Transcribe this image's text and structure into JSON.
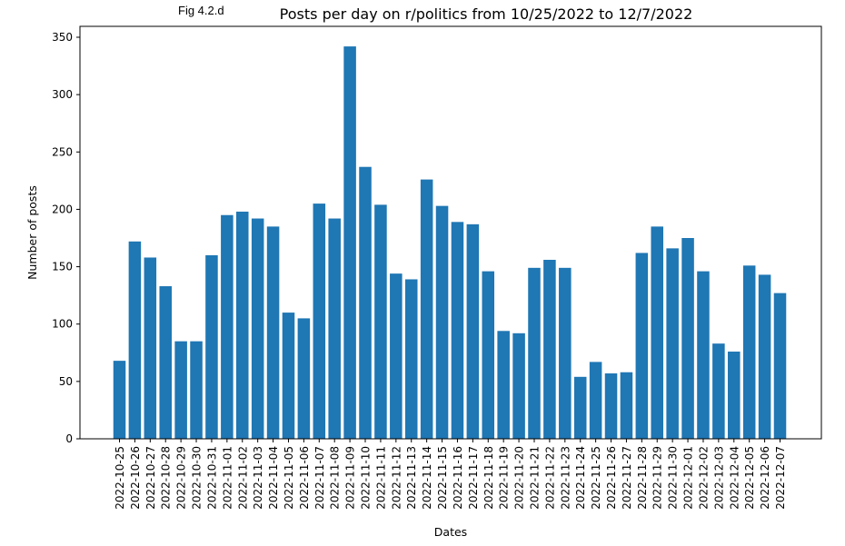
{
  "figure_label": "Fig 4.2.d",
  "chart_data": {
    "type": "bar",
    "title": "Posts per day on r/politics from 10/25/2022 to 12/7/2022",
    "xlabel": "Dates",
    "ylabel": "Number of posts",
    "ylim": [
      0,
      350
    ],
    "yticks": [
      0,
      50,
      100,
      150,
      200,
      250,
      300,
      350
    ],
    "bar_color": "#1f77b4",
    "grid": false,
    "categories": [
      "2022-10-25",
      "2022-10-26",
      "2022-10-27",
      "2022-10-28",
      "2022-10-29",
      "2022-10-30",
      "2022-10-31",
      "2022-11-01",
      "2022-11-02",
      "2022-11-03",
      "2022-11-04",
      "2022-11-05",
      "2022-11-06",
      "2022-11-07",
      "2022-11-08",
      "2022-11-09",
      "2022-11-10",
      "2022-11-11",
      "2022-11-12",
      "2022-11-13",
      "2022-11-14",
      "2022-11-15",
      "2022-11-16",
      "2022-11-17",
      "2022-11-18",
      "2022-11-19",
      "2022-11-20",
      "2022-11-21",
      "2022-11-22",
      "2022-11-23",
      "2022-11-24",
      "2022-11-25",
      "2022-11-26",
      "2022-11-27",
      "2022-11-28",
      "2022-11-29",
      "2022-11-30",
      "2022-12-01",
      "2022-12-02",
      "2022-12-03",
      "2022-12-04",
      "2022-12-05",
      "2022-12-06",
      "2022-12-07"
    ],
    "values": [
      68,
      172,
      158,
      133,
      85,
      85,
      160,
      195,
      198,
      192,
      185,
      110,
      105,
      205,
      192,
      342,
      237,
      204,
      144,
      139,
      226,
      203,
      189,
      187,
      146,
      94,
      92,
      149,
      156,
      149,
      54,
      67,
      57,
      58,
      162,
      185,
      166,
      175,
      146,
      83,
      76,
      151,
      143,
      127
    ]
  }
}
